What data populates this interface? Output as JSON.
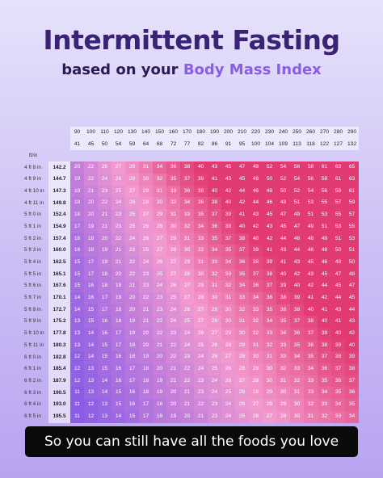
{
  "title": "Intermittent Fasting",
  "subtitle_prefix": "based on your ",
  "subtitle_accent": "Body Mass Index",
  "caption": "So you can still have all the foods you love",
  "colors": {
    "title": "#3a2274",
    "accent": "#8b5de6",
    "low": "#8b5de6",
    "mid": "#f29ad0",
    "high": "#e23a72"
  },
  "chart_data": {
    "type": "heatmap",
    "unit_label": "ft/in",
    "weight_lbs": [
      90,
      100,
      110,
      120,
      130,
      140,
      150,
      160,
      170,
      180,
      190,
      200,
      210,
      220,
      230,
      240,
      250,
      260,
      270,
      280,
      290
    ],
    "weight_kg": [
      41,
      45,
      50,
      54,
      59,
      64,
      68,
      72,
      77,
      82,
      86,
      91,
      95,
      100,
      104,
      109,
      113,
      118,
      122,
      127,
      132
    ],
    "heights": [
      {
        "ft": "4 ft 8 in",
        "cm": "142.2",
        "values": [
          20,
          22,
          25,
          27,
          29,
          31,
          34,
          36,
          38,
          40,
          43,
          45,
          47,
          49,
          52,
          54,
          56,
          58,
          61,
          63,
          65
        ]
      },
      {
        "ft": "4 ft 9 in",
        "cm": "144.7",
        "values": [
          19,
          22,
          24,
          26,
          28,
          30,
          32,
          35,
          37,
          39,
          41,
          43,
          45,
          48,
          50,
          52,
          54,
          56,
          58,
          61,
          63
        ]
      },
      {
        "ft": "4 ft 10 in",
        "cm": "147.3",
        "values": [
          19,
          21,
          23,
          25,
          27,
          29,
          31,
          33,
          36,
          38,
          40,
          42,
          44,
          46,
          48,
          50,
          52,
          54,
          56,
          59,
          61
        ]
      },
      {
        "ft": "4 ft 11 in",
        "cm": "149.8",
        "values": [
          18,
          20,
          22,
          24,
          26,
          28,
          30,
          32,
          34,
          36,
          38,
          40,
          42,
          44,
          46,
          48,
          51,
          53,
          55,
          57,
          59
        ]
      },
      {
        "ft": "5 ft 0 in",
        "cm": "152.4",
        "values": [
          18,
          20,
          21,
          23,
          25,
          27,
          29,
          31,
          33,
          35,
          37,
          39,
          41,
          43,
          45,
          47,
          49,
          51,
          53,
          55,
          57
        ]
      },
      {
        "ft": "5 ft 1 in",
        "cm": "154.9",
        "values": [
          17,
          19,
          21,
          23,
          25,
          26,
          28,
          30,
          32,
          34,
          36,
          38,
          40,
          42,
          43,
          45,
          47,
          49,
          51,
          53,
          55
        ]
      },
      {
        "ft": "5 ft 2 in",
        "cm": "157.4",
        "values": [
          16,
          18,
          20,
          22,
          24,
          26,
          27,
          29,
          31,
          33,
          35,
          37,
          38,
          40,
          42,
          44,
          46,
          48,
          49,
          51,
          53
        ]
      },
      {
        "ft": "5 ft 3 in",
        "cm": "160.0",
        "values": [
          16,
          18,
          19,
          21,
          23,
          25,
          27,
          28,
          30,
          32,
          34,
          35,
          37,
          39,
          41,
          43,
          44,
          46,
          48,
          50,
          51
        ]
      },
      {
        "ft": "5 ft 4 in",
        "cm": "162.5",
        "values": [
          15,
          17,
          19,
          21,
          22,
          24,
          26,
          27,
          29,
          31,
          33,
          34,
          36,
          38,
          39,
          41,
          43,
          45,
          46,
          48,
          50
        ]
      },
      {
        "ft": "5 ft 5 in",
        "cm": "165.1",
        "values": [
          15,
          17,
          18,
          20,
          22,
          23,
          25,
          27,
          28,
          30,
          32,
          33,
          35,
          37,
          38,
          40,
          42,
          43,
          45,
          47,
          48
        ]
      },
      {
        "ft": "5 ft 6 in",
        "cm": "167.6",
        "values": [
          15,
          16,
          18,
          19,
          21,
          23,
          24,
          26,
          27,
          29,
          31,
          32,
          34,
          36,
          37,
          39,
          40,
          42,
          44,
          45,
          47
        ]
      },
      {
        "ft": "5 ft 7 in",
        "cm": "170.1",
        "values": [
          14,
          16,
          17,
          19,
          20,
          22,
          23,
          25,
          27,
          28,
          30,
          31,
          33,
          34,
          36,
          38,
          39,
          41,
          42,
          44,
          45
        ]
      },
      {
        "ft": "5 ft 8 in",
        "cm": "172.7",
        "values": [
          14,
          15,
          17,
          18,
          20,
          21,
          23,
          24,
          26,
          27,
          29,
          30,
          32,
          33,
          35,
          36,
          38,
          40,
          41,
          43,
          44
        ]
      },
      {
        "ft": "5 ft 9 in",
        "cm": "175.2",
        "values": [
          13,
          15,
          16,
          18,
          19,
          21,
          22,
          24,
          25,
          27,
          28,
          30,
          31,
          32,
          34,
          35,
          37,
          38,
          40,
          41,
          43
        ]
      },
      {
        "ft": "5 ft 10 in",
        "cm": "177.8",
        "values": [
          13,
          14,
          16,
          17,
          19,
          20,
          22,
          23,
          24,
          26,
          27,
          29,
          30,
          32,
          33,
          34,
          36,
          37,
          39,
          40,
          42
        ]
      },
      {
        "ft": "5 ft 11 in",
        "cm": "180.3",
        "values": [
          13,
          14,
          15,
          17,
          18,
          20,
          21,
          22,
          24,
          25,
          26,
          28,
          29,
          31,
          32,
          33,
          35,
          36,
          38,
          39,
          40
        ]
      },
      {
        "ft": "6 ft 0 in",
        "cm": "182.8",
        "values": [
          12,
          14,
          15,
          16,
          18,
          19,
          20,
          22,
          23,
          24,
          26,
          27,
          28,
          30,
          31,
          33,
          34,
          35,
          37,
          38,
          39
        ]
      },
      {
        "ft": "6 ft 1 in",
        "cm": "185.4",
        "values": [
          12,
          13,
          15,
          16,
          17,
          18,
          20,
          21,
          22,
          24,
          25,
          26,
          28,
          29,
          30,
          32,
          33,
          34,
          36,
          37,
          38
        ]
      },
      {
        "ft": "6 ft 2 in",
        "cm": "187.9",
        "values": [
          12,
          13,
          14,
          16,
          17,
          18,
          19,
          21,
          22,
          23,
          24,
          26,
          27,
          28,
          30,
          31,
          32,
          33,
          35,
          36,
          37
        ]
      },
      {
        "ft": "6 ft 3 in",
        "cm": "190.5",
        "values": [
          11,
          13,
          14,
          15,
          16,
          18,
          19,
          20,
          21,
          23,
          24,
          25,
          26,
          28,
          29,
          30,
          31,
          33,
          34,
          35,
          36
        ]
      },
      {
        "ft": "6 ft 4 in",
        "cm": "193.0",
        "values": [
          11,
          12,
          13,
          15,
          16,
          17,
          18,
          20,
          21,
          22,
          23,
          24,
          26,
          27,
          28,
          29,
          30,
          32,
          33,
          34,
          35
        ]
      },
      {
        "ft": "6 ft 5 in",
        "cm": "195.5",
        "values": [
          11,
          12,
          13,
          14,
          15,
          17,
          18,
          19,
          20,
          21,
          23,
          24,
          25,
          26,
          27,
          28,
          30,
          31,
          32,
          33,
          34
        ]
      }
    ]
  }
}
